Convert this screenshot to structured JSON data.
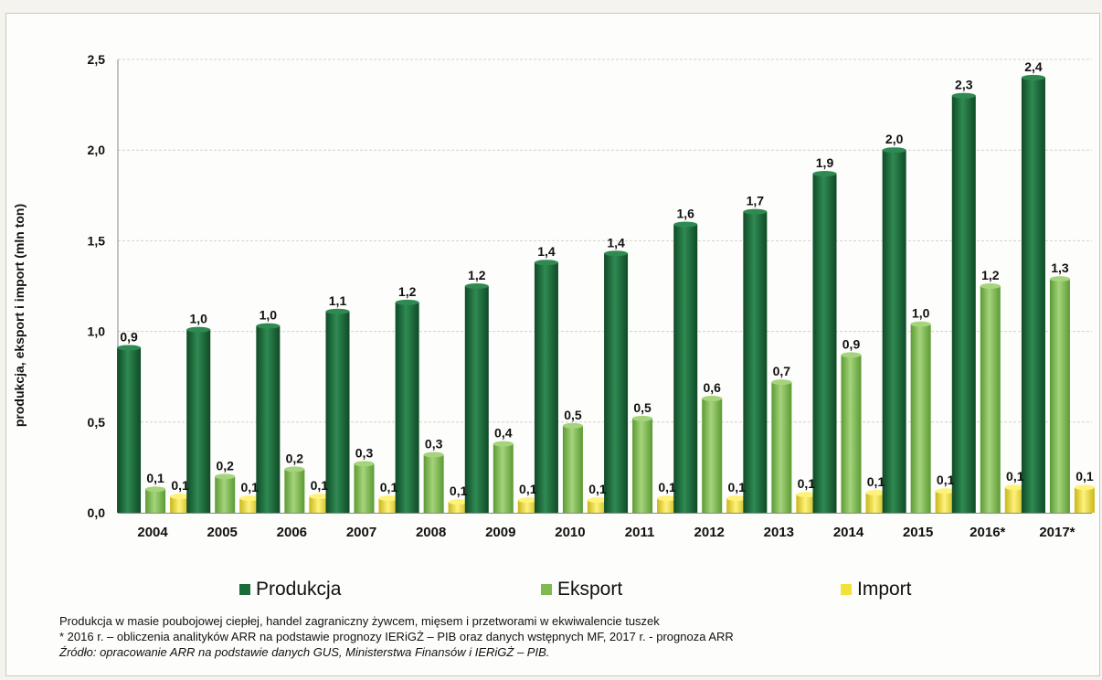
{
  "colors": {
    "produkcja": "#1b6b3a",
    "eksport": "#7fba4f",
    "import": "#f3e03a"
  },
  "legend": {
    "produkcja": "Produkcja",
    "eksport": "Eksport",
    "import": "Import"
  },
  "notes": {
    "line1": "Produkcja w masie poubojowej ciepłej, handel zagraniczny żywcem, mięsem i przetworami w ekwiwalencie tuszek",
    "line2": "* 2016 r.  – obliczenia analityków ARR na podstawie prognozy IERiGŻ – PIB  oraz danych wstępnych MF, 2017 r. - prognoza ARR",
    "line3": "Źródło: opracowanie ARR na podstawie danych GUS, Ministerstwa Finansów i IERiGŻ – PIB."
  },
  "chart_data": {
    "type": "bar",
    "title": "",
    "xlabel": "",
    "ylabel": "produkcja, eksport i import (mln ton)",
    "ylim": [
      0,
      2.5
    ],
    "yticks": [
      "0,0",
      "0,5",
      "1,0",
      "1,5",
      "2,0",
      "2,5"
    ],
    "grid": true,
    "legend_position": "bottom",
    "categories": [
      "2004",
      "2005",
      "2006",
      "2007",
      "2008",
      "2009",
      "2010",
      "2011",
      "2012",
      "2013",
      "2014",
      "2015",
      "2016*",
      "2017*"
    ],
    "series": [
      {
        "name": "Produkcja",
        "values": [
          0.91,
          1.01,
          1.03,
          1.11,
          1.16,
          1.25,
          1.38,
          1.43,
          1.59,
          1.66,
          1.87,
          2.0,
          2.3,
          2.4
        ],
        "labels": [
          "0,9",
          "1,0",
          "1,0",
          "1,1",
          "1,2",
          "1,2",
          "1,4",
          "1,4",
          "1,6",
          "1,7",
          "1,9",
          "2,0",
          "2,3",
          "2,4"
        ]
      },
      {
        "name": "Eksport",
        "values": [
          0.13,
          0.2,
          0.24,
          0.27,
          0.32,
          0.38,
          0.48,
          0.52,
          0.63,
          0.72,
          0.87,
          1.04,
          1.25,
          1.29
        ],
        "labels": [
          "0,1",
          "0,2",
          "0,2",
          "0,3",
          "0,3",
          "0,4",
          "0,5",
          "0,5",
          "0,6",
          "0,7",
          "0,9",
          "1,0",
          "1,2",
          "1,3"
        ]
      },
      {
        "name": "Import",
        "values": [
          0.09,
          0.08,
          0.09,
          0.08,
          0.06,
          0.07,
          0.07,
          0.08,
          0.08,
          0.1,
          0.11,
          0.12,
          0.14,
          0.14
        ],
        "labels": [
          "0,1",
          "0,1",
          "0,1",
          "0,1",
          "0,1",
          "0,1",
          "0,1",
          "0,1",
          "0,1",
          "0,1",
          "0,1",
          "0,1",
          "0,1",
          "0,1"
        ]
      }
    ]
  }
}
